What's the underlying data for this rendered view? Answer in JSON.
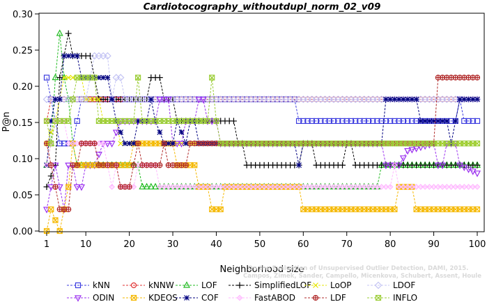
{
  "chart_data": {
    "type": "line",
    "title": "Cardiotocography_withoutdupl_norm_02_v09",
    "xlabel": "Neighborhood size",
    "ylabel": "P@n",
    "xlim": [
      1,
      100
    ],
    "ylim": [
      0,
      0.3
    ],
    "xticks": [
      1,
      10,
      20,
      30,
      40,
      50,
      60,
      70,
      80,
      90,
      100
    ],
    "yticks": [
      "0.00",
      "0.05",
      "0.10",
      "0.15",
      "0.20",
      "0.25",
      "0.30"
    ],
    "grid": false,
    "legend_position": "bottom",
    "watermark": [
      "Campos, Zimek, Sander, Campello, Micenkova, Schubert, Assent, Houle",
      "On the Evaluation of Unsupervised Outlier Detection, DAMI, 2015."
    ],
    "series": [
      {
        "name": "kNN",
        "color": "#3b3bdf",
        "marker": "square",
        "points": [
          [
            1,
            0.212
          ],
          [
            3,
            0.152
          ],
          [
            4,
            0.121
          ],
          [
            7,
            0.121
          ],
          [
            8,
            0.152
          ],
          [
            9,
            0.182
          ],
          [
            58,
            0.182
          ],
          [
            59,
            0.152
          ],
          [
            95,
            0.152
          ],
          [
            96,
            0.182
          ],
          [
            97,
            0.152
          ],
          [
            100,
            0.152
          ]
        ]
      },
      {
        "name": "kNNW",
        "color": "#e03030",
        "marker": "circle",
        "points": [
          [
            1,
            0.152
          ],
          [
            2,
            0.182
          ],
          [
            100,
            0.182
          ]
        ]
      },
      {
        "name": "LOF",
        "color": "#22bb22",
        "marker": "triangle-up",
        "points": [
          [
            1,
            0.091
          ],
          [
            2,
            0.121
          ],
          [
            3,
            0.212
          ],
          [
            4,
            0.273
          ],
          [
            5,
            0.212
          ],
          [
            6,
            0.182
          ],
          [
            7,
            0.121
          ],
          [
            8,
            0.091
          ],
          [
            22,
            0.091
          ],
          [
            23,
            0.061
          ],
          [
            77,
            0.061
          ],
          [
            78,
            0.091
          ],
          [
            100,
            0.091
          ]
        ]
      },
      {
        "name": "SimplifiedLOF",
        "color": "#000000",
        "marker": "plus",
        "points": [
          [
            1,
            0.061
          ],
          [
            3,
            0.091
          ],
          [
            4,
            0.212
          ],
          [
            5,
            0.242
          ],
          [
            6,
            0.273
          ],
          [
            7,
            0.242
          ],
          [
            11,
            0.242
          ],
          [
            12,
            0.212
          ],
          [
            13,
            0.182
          ],
          [
            24,
            0.182
          ],
          [
            25,
            0.212
          ],
          [
            27,
            0.212
          ],
          [
            28,
            0.182
          ],
          [
            30,
            0.182
          ],
          [
            31,
            0.152
          ],
          [
            44,
            0.152
          ],
          [
            45,
            0.121
          ],
          [
            46,
            0.121
          ],
          [
            47,
            0.091
          ],
          [
            59,
            0.091
          ],
          [
            60,
            0.121
          ],
          [
            62,
            0.121
          ],
          [
            63,
            0.091
          ],
          [
            69,
            0.091
          ],
          [
            70,
            0.121
          ],
          [
            71,
            0.121
          ],
          [
            72,
            0.091
          ],
          [
            100,
            0.091
          ]
        ]
      },
      {
        "name": "LoOP",
        "color": "#e6e600",
        "marker": "x",
        "points": [
          [
            1,
            0.121
          ],
          [
            3,
            0.152
          ],
          [
            5,
            0.212
          ],
          [
            9,
            0.212
          ],
          [
            10,
            0.182
          ],
          [
            13,
            0.182
          ],
          [
            14,
            0.152
          ],
          [
            17,
            0.152
          ],
          [
            18,
            0.121
          ],
          [
            100,
            0.121
          ]
        ]
      },
      {
        "name": "LDOF",
        "color": "#c4c4f4",
        "marker": "diamond",
        "points": [
          [
            1,
            0.182
          ],
          [
            10,
            0.182
          ],
          [
            11,
            0.212
          ],
          [
            12,
            0.242
          ],
          [
            15,
            0.242
          ],
          [
            16,
            0.182
          ],
          [
            17,
            0.212
          ],
          [
            18,
            0.212
          ],
          [
            19,
            0.182
          ],
          [
            100,
            0.182
          ]
        ]
      },
      {
        "name": "ODIN",
        "color": "#9b30ef",
        "marker": "triangle-down",
        "points": [
          [
            1,
            0.03
          ],
          [
            2,
            0.061
          ],
          [
            3,
            0.091
          ],
          [
            4,
            0.061
          ],
          [
            5,
            0.03
          ],
          [
            6,
            0.091
          ],
          [
            7,
            0.091
          ],
          [
            8,
            0.061
          ],
          [
            9,
            0.061
          ],
          [
            10,
            0.091
          ],
          [
            12,
            0.091
          ],
          [
            14,
            0.121
          ],
          [
            16,
            0.121
          ],
          [
            18,
            0.152
          ],
          [
            20,
            0.152
          ],
          [
            26,
            0.152
          ],
          [
            27,
            0.182
          ],
          [
            29,
            0.182
          ],
          [
            30,
            0.121
          ],
          [
            32,
            0.121
          ],
          [
            33,
            0.152
          ],
          [
            35,
            0.152
          ],
          [
            36,
            0.182
          ],
          [
            37,
            0.182
          ],
          [
            38,
            0.152
          ],
          [
            40,
            0.152
          ],
          [
            41,
            0.121
          ],
          [
            78,
            0.121
          ],
          [
            79,
            0.091
          ],
          [
            82,
            0.091
          ],
          [
            84,
            0.111
          ],
          [
            90,
            0.121
          ],
          [
            91,
            0.091
          ],
          [
            92,
            0.091
          ],
          [
            93,
            0.121
          ],
          [
            95,
            0.121
          ],
          [
            96,
            0.091
          ],
          [
            100,
            0.08
          ]
        ]
      },
      {
        "name": "KDEOS",
        "color": "#f5b800",
        "marker": "square-x",
        "points": [
          [
            1,
            0.0
          ],
          [
            2,
            0.03
          ],
          [
            4,
            0.0
          ],
          [
            5,
            0.03
          ],
          [
            6,
            0.061
          ],
          [
            7,
            0.121
          ],
          [
            8,
            0.091
          ],
          [
            20,
            0.091
          ],
          [
            21,
            0.121
          ],
          [
            30,
            0.121
          ],
          [
            31,
            0.091
          ],
          [
            35,
            0.091
          ],
          [
            36,
            0.061
          ],
          [
            38,
            0.061
          ],
          [
            39,
            0.03
          ],
          [
            41,
            0.03
          ],
          [
            42,
            0.061
          ],
          [
            59,
            0.061
          ],
          [
            60,
            0.03
          ],
          [
            81,
            0.03
          ],
          [
            82,
            0.061
          ],
          [
            85,
            0.061
          ],
          [
            86,
            0.03
          ],
          [
            100,
            0.03
          ]
        ]
      },
      {
        "name": "COF",
        "color": "#000080",
        "marker": "asterisk",
        "points": [
          [
            1,
            0.091
          ],
          [
            2,
            0.152
          ],
          [
            3,
            0.182
          ],
          [
            4,
            0.182
          ],
          [
            5,
            0.242
          ],
          [
            8,
            0.242
          ],
          [
            9,
            0.212
          ],
          [
            15,
            0.212
          ],
          [
            16,
            0.182
          ],
          [
            17,
            0.152
          ],
          [
            19,
            0.121
          ],
          [
            21,
            0.121
          ],
          [
            22,
            0.152
          ],
          [
            24,
            0.152
          ],
          [
            25,
            0.182
          ],
          [
            26,
            0.152
          ],
          [
            28,
            0.121
          ],
          [
            30,
            0.121
          ],
          [
            31,
            0.152
          ],
          [
            33,
            0.121
          ],
          [
            34,
            0.152
          ],
          [
            35,
            0.152
          ],
          [
            36,
            0.121
          ],
          [
            58,
            0.121
          ],
          [
            59,
            0.091
          ],
          [
            60,
            0.121
          ],
          [
            78,
            0.121
          ],
          [
            79,
            0.182
          ],
          [
            86,
            0.182
          ],
          [
            87,
            0.152
          ],
          [
            93,
            0.152
          ],
          [
            94,
            0.121
          ],
          [
            95,
            0.152
          ],
          [
            96,
            0.182
          ],
          [
            100,
            0.182
          ]
        ]
      },
      {
        "name": "FastABOD",
        "color": "#ffb8ff",
        "marker": "diamond-small",
        "points": [
          [
            1,
            0.091
          ],
          [
            2,
            0.121
          ],
          [
            3,
            0.152
          ],
          [
            5,
            0.152
          ],
          [
            6,
            0.121
          ],
          [
            14,
            0.121
          ],
          [
            15,
            0.091
          ],
          [
            16,
            0.061
          ],
          [
            17,
            0.091
          ],
          [
            18,
            0.061
          ],
          [
            21,
            0.061
          ],
          [
            22,
            0.091
          ],
          [
            26,
            0.091
          ],
          [
            27,
            0.061
          ],
          [
            80,
            0.061
          ],
          [
            81,
            0.091
          ],
          [
            82,
            0.061
          ],
          [
            100,
            0.061
          ]
        ]
      },
      {
        "name": "LDF",
        "color": "#b02828",
        "marker": "circle-plus",
        "points": [
          [
            1,
            0.121
          ],
          [
            2,
            0.091
          ],
          [
            3,
            0.061
          ],
          [
            4,
            0.03
          ],
          [
            6,
            0.03
          ],
          [
            7,
            0.091
          ],
          [
            8,
            0.091
          ],
          [
            9,
            0.121
          ],
          [
            12,
            0.121
          ],
          [
            13,
            0.091
          ],
          [
            17,
            0.091
          ],
          [
            18,
            0.061
          ],
          [
            20,
            0.061
          ],
          [
            21,
            0.091
          ],
          [
            22,
            0.121
          ],
          [
            23,
            0.091
          ],
          [
            27,
            0.091
          ],
          [
            28,
            0.121
          ],
          [
            29,
            0.091
          ],
          [
            33,
            0.091
          ],
          [
            34,
            0.121
          ],
          [
            90,
            0.121
          ],
          [
            91,
            0.212
          ],
          [
            100,
            0.212
          ]
        ]
      },
      {
        "name": "INFLO",
        "color": "#99cc33",
        "marker": "square-x",
        "points": [
          [
            1,
            0.152
          ],
          [
            2,
            0.121
          ],
          [
            3,
            0.152
          ],
          [
            6,
            0.152
          ],
          [
            7,
            0.182
          ],
          [
            8,
            0.212
          ],
          [
            12,
            0.212
          ],
          [
            13,
            0.152
          ],
          [
            21,
            0.152
          ],
          [
            22,
            0.212
          ],
          [
            23,
            0.152
          ],
          [
            38,
            0.152
          ],
          [
            39,
            0.212
          ],
          [
            40,
            0.152
          ],
          [
            41,
            0.121
          ],
          [
            100,
            0.121
          ]
        ]
      }
    ]
  }
}
